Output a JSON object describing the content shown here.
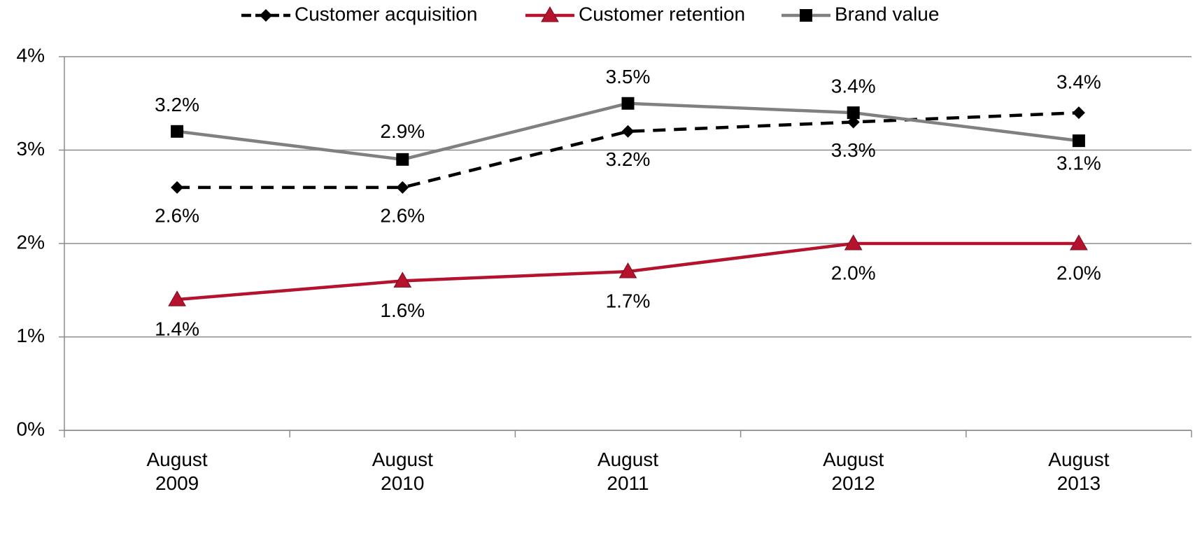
{
  "chart_data": {
    "type": "line",
    "categories": [
      "August 2009",
      "August 2010",
      "August 2011",
      "August 2012",
      "August 2013"
    ],
    "series": [
      {
        "name": "Customer acquisition",
        "color": "#000000",
        "dash": true,
        "marker": "diamond",
        "marker_color": "#000000",
        "values": [
          2.6,
          2.6,
          3.2,
          3.3,
          3.4
        ],
        "value_labels": [
          "2.6%",
          "2.6%",
          "3.2%",
          "3.3%",
          "3.4%"
        ]
      },
      {
        "name": "Customer retention",
        "color": "#b5122e",
        "dash": false,
        "marker": "triangle",
        "marker_color": "#b5122e",
        "values": [
          1.4,
          1.6,
          1.7,
          2.0,
          2.0
        ],
        "value_labels": [
          "1.4%",
          "1.6%",
          "1.7%",
          "2.0%",
          "2.0%"
        ]
      },
      {
        "name": "Brand value",
        "color": "#808080",
        "dash": false,
        "marker": "square",
        "marker_color": "#000000",
        "values": [
          3.2,
          2.9,
          3.5,
          3.4,
          3.1
        ],
        "value_labels": [
          "3.2%",
          "2.9%",
          "3.5%",
          "3.4%",
          "3.1%"
        ]
      }
    ],
    "ylim": [
      0,
      4
    ],
    "yticks": [
      {
        "value": 0,
        "label": "0%"
      },
      {
        "value": 1,
        "label": "1%"
      },
      {
        "value": 2,
        "label": "2%"
      },
      {
        "value": 3,
        "label": "3%"
      },
      {
        "value": 4,
        "label": "4%"
      }
    ],
    "grid": true,
    "legend": "top"
  }
}
